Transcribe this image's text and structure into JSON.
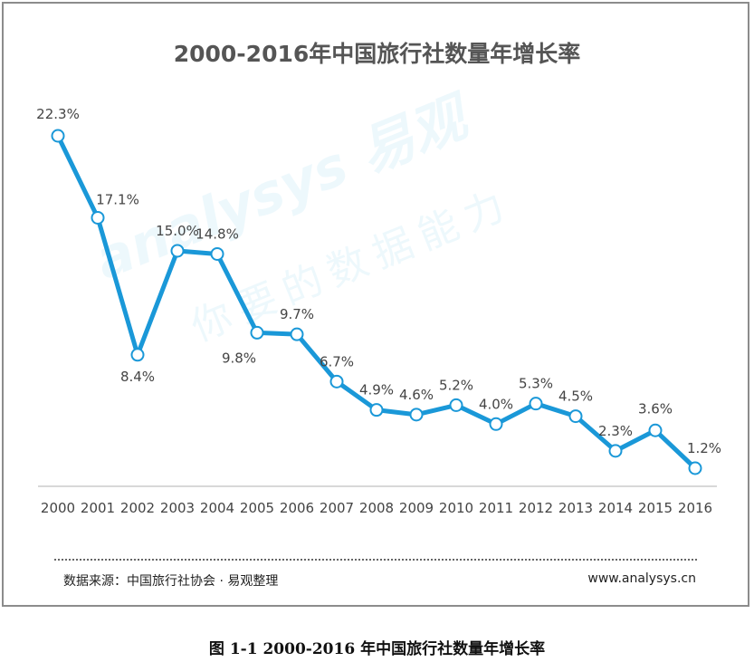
{
  "chart_title": "2000-2016年中国旅行社数量年增长率",
  "watermark": {
    "brand": "analysys 易观",
    "slogan": "你要的数据能力"
  },
  "source": "数据来源：中国旅行社协会 · 易观整理",
  "website": "www.analysys.cn",
  "caption": "图 1-1 2000-2016 年中国旅行社数量年增长率",
  "colors": {
    "line": "#1a98d8",
    "marker_fill": "#ffffff",
    "axis": "#cccccc"
  },
  "chart_data": {
    "type": "line",
    "title": "2000-2016年中国旅行社数量年增长率",
    "xlabel": "",
    "ylabel": "",
    "categories": [
      "2000",
      "2001",
      "2002",
      "2003",
      "2004",
      "2005",
      "2006",
      "2007",
      "2008",
      "2009",
      "2010",
      "2011",
      "2012",
      "2013",
      "2014",
      "2015",
      "2016"
    ],
    "values": [
      22.3,
      17.1,
      8.4,
      15.0,
      14.8,
      9.8,
      9.7,
      6.7,
      4.9,
      4.6,
      5.2,
      4.0,
      5.3,
      4.5,
      2.3,
      3.6,
      1.2
    ],
    "value_labels": [
      "22.3%",
      "17.1%",
      "8.4%",
      "15.0%",
      "14.8%",
      "9.8%",
      "9.7%",
      "6.7%",
      "4.9%",
      "4.6%",
      "5.2%",
      "4.0%",
      "5.3%",
      "4.5%",
      "2.3%",
      "3.6%",
      "1.2%"
    ],
    "unit": "%",
    "ylim": [
      0,
      22.3
    ],
    "grid": false,
    "legend": "none"
  }
}
